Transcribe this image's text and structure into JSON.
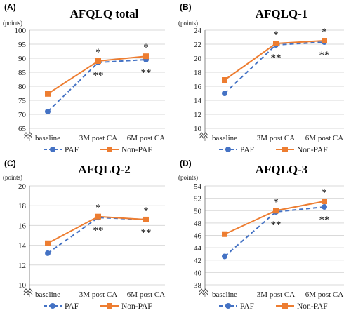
{
  "colors": {
    "paf": "#4472C4",
    "non_paf": "#ED7D31",
    "grid": "#d9d9d9"
  },
  "chart_data": [
    {
      "panel": "(A)",
      "type": "line",
      "title": "AFQLQ total",
      "ylabel": "(points)",
      "categories": [
        "baseline",
        "3M post CA",
        "6M post CA"
      ],
      "yticks": [
        65,
        70,
        75,
        80,
        85,
        90,
        95,
        100
      ],
      "ylim": [
        65,
        100
      ],
      "axis_break": true,
      "grid": true,
      "legend": "bottom",
      "series": [
        {
          "name": "PAF",
          "values": [
            71,
            88.5,
            89.5
          ]
        },
        {
          "name": "Non-PAF",
          "values": [
            77.3,
            89,
            90.7
          ]
        }
      ],
      "annotations": [
        {
          "text": "*",
          "category": 1,
          "position": "above"
        },
        {
          "text": "**",
          "category": 1,
          "position": "below"
        },
        {
          "text": "*",
          "category": 2,
          "position": "above"
        },
        {
          "text": "**",
          "category": 2,
          "position": "below"
        }
      ]
    },
    {
      "panel": "(B)",
      "type": "line",
      "title": "AFQLQ-1",
      "ylabel": "(points)",
      "categories": [
        "baseline",
        "3M post CA",
        "6M post CA"
      ],
      "yticks": [
        10,
        12,
        14,
        16,
        18,
        20,
        22,
        24
      ],
      "ylim": [
        10,
        24
      ],
      "axis_break": true,
      "grid": true,
      "legend": "bottom",
      "series": [
        {
          "name": "PAF",
          "values": [
            15,
            21.9,
            22.3
          ]
        },
        {
          "name": "Non-PAF",
          "values": [
            16.9,
            22.1,
            22.5
          ]
        }
      ],
      "annotations": [
        {
          "text": "*",
          "category": 1,
          "position": "above"
        },
        {
          "text": "**",
          "category": 1,
          "position": "below"
        },
        {
          "text": "*",
          "category": 2,
          "position": "above"
        },
        {
          "text": "**",
          "category": 2,
          "position": "below"
        }
      ]
    },
    {
      "panel": "(C)",
      "type": "line",
      "title": "AFQLQ-2",
      "ylabel": "(points)",
      "categories": [
        "baseline",
        "3M post CA",
        "6M post CA"
      ],
      "yticks": [
        10,
        12,
        14,
        16,
        18,
        20
      ],
      "ylim": [
        10,
        20
      ],
      "axis_break": true,
      "grid": true,
      "legend": "bottom",
      "series": [
        {
          "name": "PAF",
          "values": [
            13.2,
            16.8,
            16.6
          ]
        },
        {
          "name": "Non-PAF",
          "values": [
            14.2,
            16.9,
            16.6
          ]
        }
      ],
      "annotations": [
        {
          "text": "*",
          "category": 1,
          "position": "above"
        },
        {
          "text": "**",
          "category": 1,
          "position": "below"
        },
        {
          "text": "*",
          "category": 2,
          "position": "above"
        },
        {
          "text": "**",
          "category": 2,
          "position": "below"
        }
      ]
    },
    {
      "panel": "(D)",
      "type": "line",
      "title": "AFQLQ-3",
      "ylabel": "(points)",
      "categories": [
        "baseline",
        "3M post CA",
        "6M post CA"
      ],
      "yticks": [
        38,
        40,
        42,
        44,
        46,
        48,
        50,
        52,
        54
      ],
      "ylim": [
        38,
        54
      ],
      "axis_break": true,
      "grid": true,
      "legend": "bottom",
      "series": [
        {
          "name": "PAF",
          "values": [
            42.6,
            49.8,
            50.6
          ]
        },
        {
          "name": "Non-PAF",
          "values": [
            46.2,
            50,
            51.5
          ]
        }
      ],
      "annotations": [
        {
          "text": "*",
          "category": 1,
          "position": "above"
        },
        {
          "text": "**",
          "category": 1,
          "position": "below"
        },
        {
          "text": "*",
          "category": 2,
          "position": "above"
        },
        {
          "text": "**",
          "category": 2,
          "position": "below"
        }
      ]
    }
  ]
}
